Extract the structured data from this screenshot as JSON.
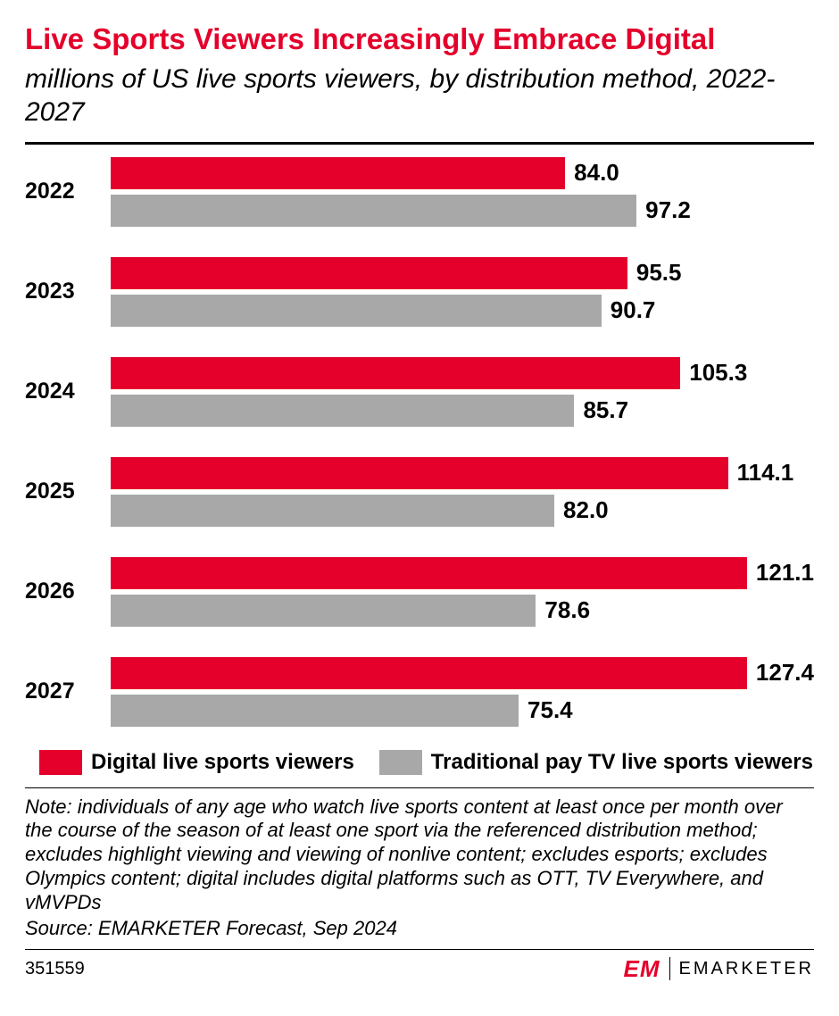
{
  "title": "Live Sports Viewers Increasingly Embrace Digital",
  "title_color": "#e4002b",
  "subtitle": "millions of US live sports viewers, by distribution method, 2022-2027",
  "chart": {
    "type": "grouped-horizontal-bar",
    "max_value": 130,
    "bar_colors": {
      "digital": "#e4002b",
      "traditional": "#a8a8a8"
    },
    "value_label_fontsize": 26,
    "value_label_color": "#000000",
    "year_label_fontsize": 25,
    "background_color": "#ffffff",
    "years": [
      {
        "year": "2022",
        "digital": 84.0,
        "traditional": 97.2
      },
      {
        "year": "2023",
        "digital": 95.5,
        "traditional": 90.7
      },
      {
        "year": "2024",
        "digital": 105.3,
        "traditional": 85.7
      },
      {
        "year": "2025",
        "digital": 114.1,
        "traditional": 82.0
      },
      {
        "year": "2026",
        "digital": 121.1,
        "traditional": 78.6
      },
      {
        "year": "2027",
        "digital": 127.4,
        "traditional": 75.4
      }
    ],
    "display_values": {
      "2022": {
        "digital": "84.0",
        "traditional": "97.2"
      },
      "2023": {
        "digital": "95.5",
        "traditional": "90.7"
      },
      "2024": {
        "digital": "105.3",
        "traditional": "85.7"
      },
      "2025": {
        "digital": "114.1",
        "traditional": "82.0"
      },
      "2026": {
        "digital": "121.1",
        "traditional": "78.6"
      },
      "2027": {
        "digital": "127.4",
        "traditional": "75.4"
      }
    }
  },
  "legend": {
    "digital": "Digital live sports viewers",
    "traditional": "Traditional pay TV live sports viewers"
  },
  "note": "Note: individuals of any age who watch live sports content at least once per month over the course of the season of at least one sport via the referenced distribution method; excludes highlight viewing and viewing of nonlive content; excludes esports; excludes Olympics content; digital includes digital platforms such as OTT, TV Everywhere, and vMVPDs",
  "source": "Source: EMARKETER Forecast, Sep 2024",
  "chart_id": "351559",
  "brand": {
    "mark": "EM",
    "mark_color": "#e4002b",
    "name": "EMARKETER"
  }
}
